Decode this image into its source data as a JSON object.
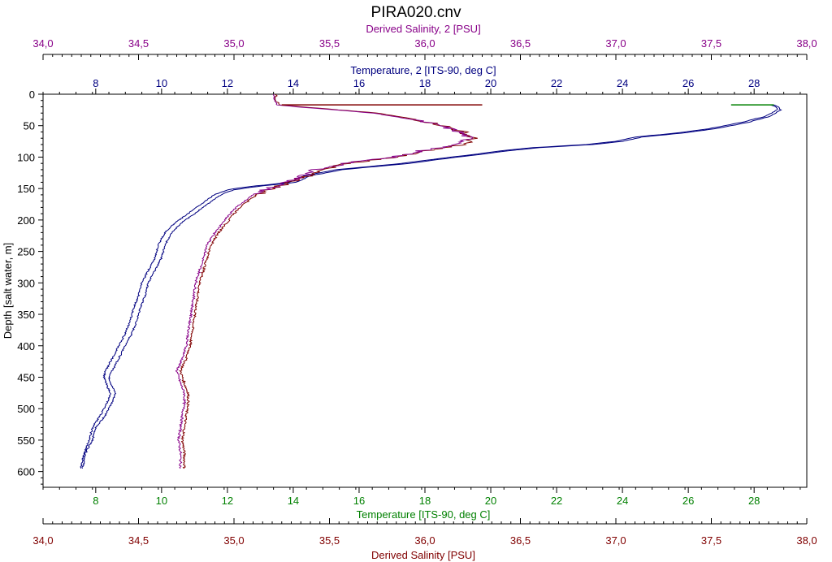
{
  "chart_data": {
    "type": "line",
    "title": "PIRA020.cnv",
    "y_axis": {
      "label": "Depth [salt water, m]",
      "range": [
        0,
        625
      ],
      "inverted": true,
      "ticks": [
        0,
        50,
        100,
        150,
        200,
        250,
        300,
        350,
        400,
        450,
        500,
        550,
        600
      ]
    },
    "x_axes": [
      {
        "id": "sal2",
        "label": "Derived Salinity, 2 [PSU]",
        "position": "top-outer",
        "range": [
          34.0,
          38.0
        ],
        "ticks": [
          "34,0",
          "34,5",
          "35,0",
          "35,5",
          "36,0",
          "36,5",
          "37,0",
          "37,5",
          "38,0"
        ],
        "color": "#880088"
      },
      {
        "id": "temp2",
        "label": "Temperature, 2 [ITS-90, deg C]",
        "position": "top-inner",
        "range": [
          6.4,
          29.6
        ],
        "ticks": [
          "8",
          "10",
          "12",
          "14",
          "16",
          "18",
          "20",
          "22",
          "24",
          "26",
          "28"
        ],
        "color": "#000080"
      },
      {
        "id": "temp",
        "label": "Temperature [ITS-90, deg C]",
        "position": "bottom-inner",
        "range": [
          6.4,
          29.6
        ],
        "ticks": [
          "8",
          "10",
          "12",
          "14",
          "16",
          "18",
          "20",
          "22",
          "24",
          "26",
          "28"
        ],
        "color": "#008000"
      },
      {
        "id": "sal",
        "label": "Derived Salinity [PSU]",
        "position": "bottom-outer",
        "range": [
          34.0,
          38.0
        ],
        "ticks": [
          "34,0",
          "34,5",
          "35,0",
          "35,5",
          "36,0",
          "36,5",
          "37,0",
          "37,5",
          "38,0"
        ],
        "color": "#800000"
      }
    ],
    "series": [
      {
        "axis": "temp",
        "color": "#000080",
        "depth": [
          17,
          20,
          25,
          35,
          45,
          55,
          62,
          68,
          75,
          80,
          85,
          90,
          95,
          100,
          110,
          120,
          130,
          140,
          148,
          152,
          160,
          175,
          190,
          205,
          220,
          240,
          260,
          280,
          300,
          320,
          340,
          360,
          380,
          400,
          420,
          440,
          450,
          465,
          475,
          490,
          510,
          530,
          550,
          570,
          595
        ],
        "value": [
          28.6,
          28.75,
          28.8,
          28.5,
          27.8,
          26.8,
          25.8,
          24.6,
          24.0,
          23.1,
          21.5,
          20.5,
          19.8,
          19.0,
          17.5,
          15.5,
          14.5,
          14.1,
          12.7,
          12.2,
          11.8,
          11.4,
          11.0,
          10.6,
          10.3,
          10.1,
          10.0,
          9.8,
          9.6,
          9.5,
          9.35,
          9.25,
          9.1,
          8.9,
          8.7,
          8.5,
          8.4,
          8.5,
          8.6,
          8.5,
          8.3,
          8.0,
          7.9,
          7.7,
          7.6
        ]
      },
      {
        "axis": "temp2",
        "color": "#000080",
        "depth": [
          17,
          20,
          25,
          35,
          45,
          55,
          62,
          68,
          75,
          80,
          85,
          90,
          95,
          100,
          110,
          120,
          130,
          140,
          148,
          152,
          160,
          175,
          190,
          205,
          220,
          240,
          260,
          280,
          300,
          320,
          340,
          360,
          380,
          400,
          420,
          440,
          450,
          465,
          475,
          490,
          510,
          530,
          550,
          570,
          595
        ],
        "value": [
          28.5,
          28.65,
          28.7,
          28.35,
          27.6,
          26.6,
          25.6,
          24.4,
          23.8,
          22.9,
          21.3,
          20.3,
          19.6,
          18.8,
          17.3,
          15.3,
          14.3,
          13.9,
          12.5,
          12.0,
          11.6,
          11.2,
          10.8,
          10.4,
          10.1,
          9.9,
          9.8,
          9.6,
          9.4,
          9.3,
          9.15,
          9.05,
          8.9,
          8.7,
          8.5,
          8.3,
          8.25,
          8.35,
          8.45,
          8.35,
          8.15,
          7.9,
          7.8,
          7.65,
          7.55
        ]
      },
      {
        "axis": "sal",
        "color": "#800000",
        "depth": [
          0,
          10,
          17,
          20,
          25,
          30,
          40,
          50,
          60,
          70,
          80,
          90,
          100,
          110,
          120,
          130,
          140,
          150,
          160,
          175,
          190,
          205,
          220,
          240,
          260,
          280,
          300,
          320,
          340,
          360,
          380,
          400,
          420,
          440,
          460,
          475,
          490,
          510,
          530,
          550,
          570,
          595
        ],
        "value": [
          35.22,
          35.22,
          35.24,
          35.35,
          35.55,
          35.75,
          35.95,
          36.1,
          36.2,
          36.25,
          36.2,
          36.0,
          35.85,
          35.6,
          35.45,
          35.38,
          35.3,
          35.2,
          35.12,
          35.05,
          35.0,
          34.96,
          34.92,
          34.88,
          34.86,
          34.84,
          34.82,
          34.81,
          34.8,
          34.79,
          34.78,
          34.77,
          34.75,
          34.72,
          34.74,
          34.76,
          34.76,
          34.75,
          34.74,
          34.73,
          34.74,
          34.74
        ]
      },
      {
        "axis": "sal2",
        "color": "#880088",
        "depth": [
          0,
          10,
          17,
          20,
          25,
          30,
          40,
          50,
          60,
          70,
          80,
          90,
          100,
          110,
          120,
          130,
          140,
          150,
          160,
          175,
          190,
          205,
          220,
          240,
          260,
          280,
          300,
          320,
          340,
          360,
          380,
          400,
          420,
          440,
          460,
          475,
          490,
          510,
          530,
          550,
          570,
          595
        ],
        "value": [
          35.21,
          35.21,
          35.23,
          35.33,
          35.53,
          35.73,
          35.93,
          36.08,
          36.18,
          36.23,
          36.18,
          35.98,
          35.83,
          35.58,
          35.43,
          35.36,
          35.28,
          35.18,
          35.1,
          35.03,
          34.98,
          34.94,
          34.9,
          34.86,
          34.84,
          34.82,
          34.8,
          34.79,
          34.78,
          34.77,
          34.76,
          34.75,
          34.73,
          34.7,
          34.72,
          34.74,
          34.74,
          34.73,
          34.72,
          34.71,
          34.72,
          34.72
        ]
      }
    ],
    "annotations": [
      {
        "axis": "sal",
        "color": "#800000",
        "depth": 17,
        "from": 35.25,
        "to": 36.3
      },
      {
        "axis": "temp",
        "color": "#008000",
        "depth": 17,
        "from": 27.3,
        "to": 28.6
      }
    ],
    "grid": false,
    "legend": "none"
  }
}
